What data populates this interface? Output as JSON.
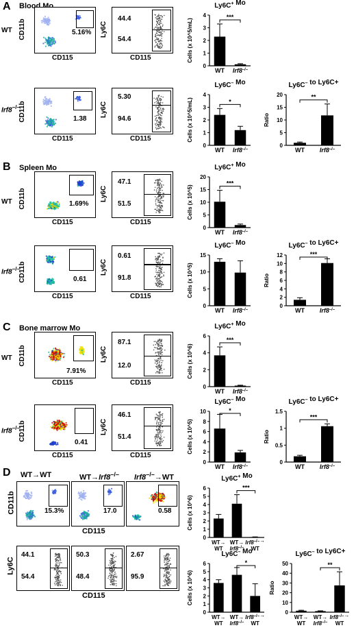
{
  "panels": {
    "A": {
      "letter": "A",
      "title": "Blood Mo"
    },
    "B": {
      "letter": "B",
      "title": "Spleen Mo"
    },
    "C": {
      "letter": "C",
      "title": "Bone marrow Mo"
    },
    "D": {
      "letter": "D",
      "title": ""
    }
  },
  "labels": {
    "wt": "WT",
    "irf8": "Irf8",
    "ko_sup": "–/–",
    "cd11b": "CD11b",
    "cd115": "CD115",
    "ly6c": "Ly6C",
    "wt_to_wt": "WT→WT",
    "wt_to_irf8_prefix": "WT→",
    "irf8_to_wt_suffix": "→WT"
  },
  "flow": {
    "A_wt": {
      "pct": "5.16%",
      "hi": "44.4",
      "lo": "54.4"
    },
    "A_ko": {
      "pct": "1.38",
      "hi": "5.30",
      "lo": "94.6"
    },
    "B_wt": {
      "pct": "1.69%",
      "hi": "47.1",
      "lo": "51.5"
    },
    "B_ko": {
      "pct": "0.61",
      "hi": "0.61",
      "lo": "91.8"
    },
    "C_wt": {
      "pct": "7.91%",
      "hi": "87.1",
      "lo": "12.0"
    },
    "C_ko": {
      "pct": "0.41",
      "hi": "46.1",
      "lo": "51.4"
    },
    "D_wtwt": {
      "pct": "15.3%",
      "hi": "44.1",
      "lo": "54.4"
    },
    "D_wtko": {
      "pct": "17.0",
      "hi": "50.3",
      "lo": "48.4"
    },
    "D_kowt": {
      "pct": "0.58",
      "hi": "2.67",
      "lo": "95.9"
    }
  },
  "colors": {
    "bar": "#000000",
    "jet_hi": "#d00000",
    "jet_mid": "#f0e000",
    "jet_low": "#20c0a0",
    "jet_base": "#2040d0"
  },
  "chart_data": [
    {
      "id": "A1",
      "type": "bar",
      "title": "Ly6C+ Mo",
      "ylabel": "Cells (x 10^5/mL)",
      "categories": [
        "WT",
        "Irf8–/–"
      ],
      "values": [
        2.3,
        0.12
      ],
      "errors": [
        1.0,
        0.05
      ],
      "ylim": [
        0,
        4
      ],
      "yticks": [
        0,
        1,
        2,
        3,
        4
      ],
      "sig": "***",
      "sig_pair": [
        0,
        1
      ]
    },
    {
      "id": "A2",
      "type": "bar",
      "title": "Ly6C– Mo",
      "ylabel": "Cells (x 10^5/mL)",
      "categories": [
        "WT",
        "Irf8–/–"
      ],
      "values": [
        2.4,
        1.2
      ],
      "errors": [
        0.5,
        0.3
      ],
      "ylim": [
        0,
        4
      ],
      "yticks": [
        0,
        1,
        2,
        3,
        4
      ],
      "sig": "*",
      "sig_pair": [
        0,
        1
      ]
    },
    {
      "id": "A3",
      "type": "bar",
      "title": "Ly6C– to Ly6C+",
      "ylabel": "Ratio",
      "categories": [
        "WT",
        "Irf8–/–"
      ],
      "values": [
        1.0,
        11.8
      ],
      "errors": [
        0.3,
        4.5
      ],
      "ylim": [
        0,
        20
      ],
      "yticks": [
        0,
        5,
        10,
        15,
        20
      ],
      "sig": "**",
      "sig_pair": [
        0,
        1
      ]
    },
    {
      "id": "B1",
      "type": "bar",
      "title": "Ly6C+ Mo",
      "ylabel": "Cells (x 10^5)",
      "categories": [
        "WT",
        "Irf8–/–"
      ],
      "values": [
        10.2,
        1.0
      ],
      "errors": [
        4.5,
        0.4
      ],
      "ylim": [
        0,
        20
      ],
      "yticks": [
        0,
        5,
        10,
        15,
        20
      ],
      "sig": "***",
      "sig_pair": [
        0,
        1
      ]
    },
    {
      "id": "B2",
      "type": "bar",
      "title": "Ly6C– Mo",
      "ylabel": "Cells (x 10^5)",
      "categories": [
        "WT",
        "Irf8–/–"
      ],
      "values": [
        13.0,
        9.8
      ],
      "errors": [
        0.9,
        3.5
      ],
      "ylim": [
        0,
        15
      ],
      "yticks": [
        0,
        5,
        10,
        15
      ],
      "sig": "",
      "sig_pair": []
    },
    {
      "id": "B3",
      "type": "bar",
      "title": "Ly6C– to Ly6C+",
      "ylabel": "Ratio",
      "categories": [
        "WT",
        "Irf8–/–"
      ],
      "values": [
        1.4,
        10.1
      ],
      "errors": [
        0.5,
        1.0
      ],
      "ylim": [
        0,
        12
      ],
      "yticks": [
        0,
        2,
        4,
        6,
        8,
        10,
        12
      ],
      "sig": "***",
      "sig_pair": [
        0,
        1
      ]
    },
    {
      "id": "C1",
      "type": "bar",
      "title": "Ly6C+ Mo",
      "ylabel": "Cells (x 10^6)",
      "categories": [
        "WT",
        "Irf8–/–"
      ],
      "values": [
        3.7,
        0.12
      ],
      "errors": [
        1.0,
        0.05
      ],
      "ylim": [
        0,
        6
      ],
      "yticks": [
        0,
        2,
        4,
        6
      ],
      "sig": "***",
      "sig_pair": [
        0,
        1
      ]
    },
    {
      "id": "C2",
      "type": "bar",
      "title": "Ly6C– Mo",
      "ylabel": "Cells (x 10^5)",
      "categories": [
        "WT",
        "Irf8–/–"
      ],
      "values": [
        6.6,
        1.9
      ],
      "errors": [
        2.8,
        0.4
      ],
      "ylim": [
        0,
        10
      ],
      "yticks": [
        0,
        2,
        4,
        6,
        8,
        10
      ],
      "sig": "*",
      "sig_pair": [
        0,
        1
      ]
    },
    {
      "id": "C3",
      "type": "bar",
      "title": "Ly6C– to Ly6C+",
      "ylabel": "Ratio",
      "categories": [
        "WT",
        "Irf8–/–"
      ],
      "values": [
        0.17,
        1.06
      ],
      "errors": [
        0.03,
        0.07
      ],
      "ylim": [
        0,
        1.5
      ],
      "yticks": [
        0,
        0.5,
        1.0,
        1.5
      ],
      "sig": "***",
      "sig_pair": [
        0,
        1
      ]
    },
    {
      "id": "D1",
      "type": "bar",
      "title": "Ly6C+ Mo",
      "ylabel": "Cells (x 10^6)",
      "categories": [
        "WT→WT",
        "WT→Irf8–/–",
        "Irf8–/–→WT"
      ],
      "values": [
        2.3,
        4.1,
        0.05
      ],
      "errors": [
        0.5,
        1.1,
        0.02
      ],
      "ylim": [
        0,
        6
      ],
      "yticks": [
        0,
        1,
        2,
        3,
        4,
        5,
        6
      ],
      "sig": "***",
      "sig_pair": [
        1,
        2
      ]
    },
    {
      "id": "D2",
      "type": "bar",
      "title": "Ly6C– Mo",
      "ylabel": "Cells (x 10^6)",
      "categories": [
        "WT→WT",
        "WT→Irf8–/–",
        "Irf8–/–→WT"
      ],
      "values": [
        3.6,
        4.6,
        2.0
      ],
      "errors": [
        0.4,
        0.9,
        1.5
      ],
      "ylim": [
        0,
        6
      ],
      "yticks": [
        0,
        1,
        2,
        3,
        4,
        5,
        6
      ],
      "sig": "*",
      "sig_pair": [
        1,
        2
      ]
    },
    {
      "id": "D3",
      "type": "bar",
      "title": "Ly6C– to Ly6C+",
      "ylabel": "Ratio",
      "categories": [
        "WT→WT",
        "WT→Irf8–/–",
        "Irf8–/–→WT"
      ],
      "values": [
        1.5,
        1.1,
        27.5
      ],
      "errors": [
        0.5,
        0.3,
        14.0
      ],
      "ylim": [
        0,
        50
      ],
      "yticks": [
        0,
        10,
        20,
        30,
        40,
        50
      ],
      "sig": "**",
      "sig_pair": [
        1,
        2
      ]
    }
  ]
}
